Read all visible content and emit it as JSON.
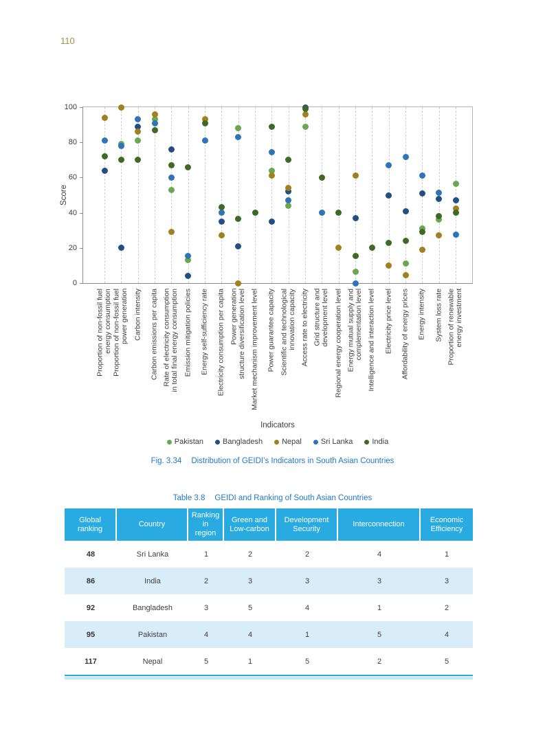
{
  "page": {
    "number": "110"
  },
  "figure": {
    "caption_label": "Fig. 3.34",
    "caption_text": "Distribution of GEIDI’s Indicators in South Asian Countries"
  },
  "chart_data": {
    "type": "scatter",
    "xlabel": "Indicators",
    "ylabel": "Score",
    "ylim": [
      0,
      100
    ],
    "yticks": [
      0,
      20,
      40,
      60,
      80,
      100
    ],
    "grid": "vertical-dashed",
    "legend_position": "bottom",
    "categories": [
      "Proportion of non-fossil fuel\nenergy consumption",
      "Proportion of non-fossil fuel\npower generation",
      "Carbon intensity",
      "Carbon emissions per capita",
      "Rate of electricity consumption\nin total final energy consumption",
      "Emission mitigation policies",
      "Energy self-sufficiency rate",
      "Electricity consumption per capita",
      "Power generation\nstructure diversification level",
      "Market mechanism improvement level",
      "Power guarantee capacity",
      "Scientific and technological\ninnovation capacity",
      "Access rate to electricity",
      "Grid structure and\ndevelopment level",
      "Regional energy cooperation level",
      "Energy mutual supply and\ncomplementation level",
      "Intelligence and interaction level",
      "Electricity price level",
      "Affordability of energy prices",
      "Energy intensity",
      "System loss rate",
      "Proportion of renewable\nenergy investment"
    ],
    "series": [
      {
        "name": "Pakistan",
        "color": "#6aa84f",
        "values": [
          null,
          79,
          81,
          93,
          53,
          13,
          null,
          null,
          88,
          null,
          64,
          44,
          89,
          null,
          null,
          6.5,
          null,
          null,
          11,
          31,
          36,
          56.5
        ]
      },
      {
        "name": "Bangladesh",
        "color": "#234f85",
        "values": [
          64,
          20,
          89,
          null,
          76,
          4,
          null,
          35,
          21,
          null,
          35,
          52,
          100,
          null,
          null,
          37,
          null,
          50,
          41,
          51,
          48,
          47
        ]
      },
      {
        "name": "Nepal",
        "color": "#a0801f",
        "values": [
          94,
          100,
          86,
          96,
          29,
          null,
          93,
          27,
          0,
          null,
          61,
          54,
          96,
          null,
          20,
          61,
          null,
          10,
          4.5,
          19,
          27,
          42.5
        ]
      },
      {
        "name": "Sri Lanka",
        "color": "#2e75b6",
        "values": [
          81,
          78,
          93,
          91,
          60,
          15.5,
          81,
          40,
          83,
          null,
          74.5,
          47,
          null,
          40,
          null,
          0,
          null,
          67,
          71.5,
          61,
          51.5,
          27.5
        ]
      },
      {
        "name": "India",
        "color": "#3f6a25",
        "values": [
          72,
          70,
          70,
          87,
          67,
          66,
          91,
          43,
          36.5,
          40,
          89,
          70,
          99,
          60,
          40,
          15.5,
          20,
          23,
          24,
          29,
          38,
          40
        ]
      }
    ]
  },
  "table": {
    "caption_label": "Table 3.8",
    "caption_text": "GEIDI and Ranking of South Asian Countries",
    "columns": [
      "Global ranking",
      "Country",
      "Ranking in region",
      "Green and Low-carbon",
      "Development Security",
      "Interconnection",
      "Economic Efficiency"
    ],
    "rows": [
      [
        "48",
        "Sri Lanka",
        "1",
        "2",
        "2",
        "4",
        "1"
      ],
      [
        "86",
        "India",
        "2",
        "3",
        "3",
        "3",
        "3"
      ],
      [
        "92",
        "Bangladesh",
        "3",
        "5",
        "4",
        "1",
        "2"
      ],
      [
        "95",
        "Pakistan",
        "4",
        "4",
        "1",
        "5",
        "4"
      ],
      [
        "117",
        "Nepal",
        "5",
        "1",
        "5",
        "2",
        "5"
      ]
    ]
  },
  "colors": {
    "caption_blue": "#2078c8",
    "table_header_blue": "#29abe2",
    "table_alt_row": "#d9edf8",
    "page_number_tan": "#a98a4c"
  }
}
